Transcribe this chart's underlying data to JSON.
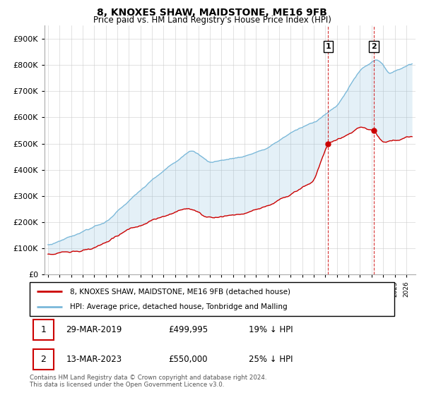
{
  "title": "8, KNOXES SHAW, MAIDSTONE, ME16 9FB",
  "subtitle": "Price paid vs. HM Land Registry's House Price Index (HPI)",
  "hpi_label": "HPI: Average price, detached house, Tonbridge and Malling",
  "property_label": "8, KNOXES SHAW, MAIDSTONE, ME16 9FB (detached house)",
  "footnote": "Contains HM Land Registry data © Crown copyright and database right 2024.\nThis data is licensed under the Open Government Licence v3.0.",
  "transaction1": {
    "num": "1",
    "date": "29-MAR-2019",
    "price": "£499,995",
    "hpi_rel": "19% ↓ HPI"
  },
  "transaction2": {
    "num": "2",
    "date": "13-MAR-2023",
    "price": "£550,000",
    "hpi_rel": "25% ↓ HPI"
  },
  "ylim": [
    0,
    950000
  ],
  "yticks": [
    0,
    100000,
    200000,
    300000,
    400000,
    500000,
    600000,
    700000,
    800000,
    900000
  ],
  "hpi_color": "#7ab8d9",
  "property_color": "#cc0000",
  "vline_color": "#cc0000",
  "background_color": "#ffffff",
  "grid_color": "#cccccc",
  "trans1_year": 2019.23,
  "trans1_price": 499995,
  "trans2_year": 2023.2,
  "trans2_price": 550000,
  "xmin": 1995,
  "xmax": 2026
}
